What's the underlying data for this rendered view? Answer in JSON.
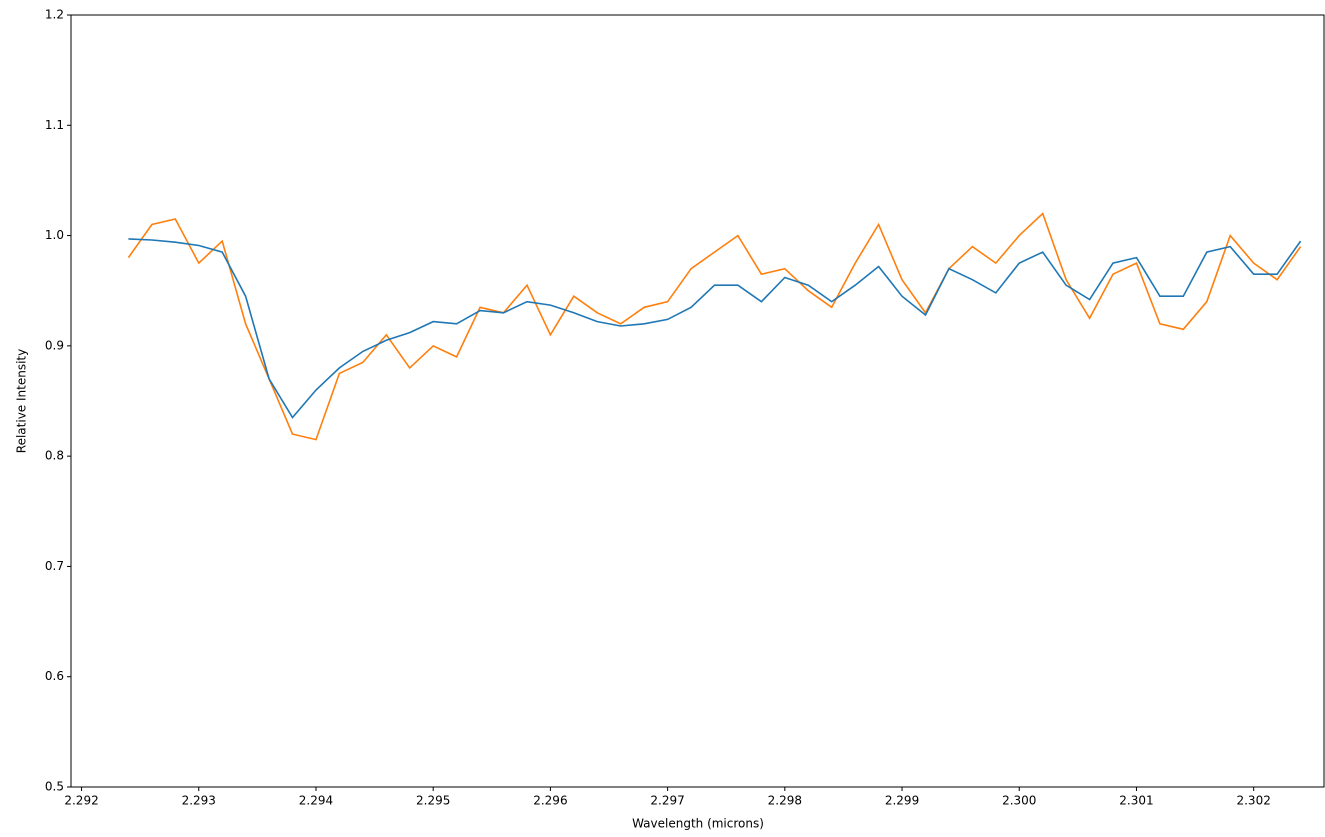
{
  "chart_data": {
    "type": "line",
    "x_label": "Wavelength (microns)",
    "y_label": "Relative Intensity",
    "x": [
      2.2924,
      2.2926,
      2.2928,
      2.293,
      2.2932,
      2.2934,
      2.2936,
      2.2938,
      2.294,
      2.2942,
      2.2944,
      2.2946,
      2.2948,
      2.295,
      2.2952,
      2.2954,
      2.2956,
      2.2958,
      2.296,
      2.2962,
      2.2964,
      2.2966,
      2.2968,
      2.297,
      2.2972,
      2.2974,
      2.2976,
      2.2978,
      2.298,
      2.2982,
      2.2984,
      2.2986,
      2.2988,
      2.299,
      2.2992,
      2.2994,
      2.2996,
      2.2998,
      2.3,
      2.3002,
      2.3004,
      2.3006,
      2.3008,
      2.301,
      2.3012,
      2.3014,
      2.3016,
      2.3018,
      2.302,
      2.3022,
      2.3024
    ],
    "series": [
      {
        "color": "#1f77b4",
        "values": [
          0.997,
          0.996,
          0.994,
          0.991,
          0.985,
          0.945,
          0.87,
          0.835,
          0.86,
          0.88,
          0.895,
          0.905,
          0.912,
          0.922,
          0.92,
          0.932,
          0.93,
          0.94,
          0.937,
          0.93,
          0.922,
          0.918,
          0.92,
          0.924,
          0.935,
          0.955,
          0.955,
          0.94,
          0.962,
          0.955,
          0.94,
          0.955,
          0.972,
          0.945,
          0.928,
          0.97,
          0.96,
          0.948,
          0.975,
          0.985,
          0.955,
          0.942,
          0.975,
          0.98,
          0.945,
          0.945,
          0.985,
          0.99,
          0.965,
          0.965,
          0.995
        ]
      },
      {
        "color": "#ff7f0e",
        "values": [
          0.98,
          1.01,
          1.015,
          0.975,
          0.995,
          0.92,
          0.87,
          0.82,
          0.815,
          0.875,
          0.885,
          0.91,
          0.88,
          0.9,
          0.89,
          0.935,
          0.93,
          0.955,
          0.91,
          0.945,
          0.93,
          0.92,
          0.935,
          0.94,
          0.97,
          0.985,
          1.0,
          0.965,
          0.97,
          0.95,
          0.935,
          0.975,
          1.01,
          0.96,
          0.93,
          0.97,
          0.99,
          0.975,
          1.0,
          1.02,
          0.96,
          0.925,
          0.965,
          0.975,
          0.92,
          0.915,
          0.94,
          1.0,
          0.975,
          0.96,
          0.99
        ]
      }
    ],
    "xlim": [
      2.29191,
      2.3026
    ],
    "ylim": [
      0.5,
      1.2
    ],
    "xticks": [
      2.292,
      2.293,
      2.294,
      2.295,
      2.296,
      2.297,
      2.298,
      2.299,
      {
        "value": 2.3,
        "label": "2.300"
      },
      2.301,
      2.302
    ],
    "yticks": [
      0.5,
      0.6,
      0.7,
      0.8,
      0.9,
      {
        "value": 1.0,
        "label": "1.0"
      },
      1.1,
      1.2
    ],
    "grid": false
  }
}
